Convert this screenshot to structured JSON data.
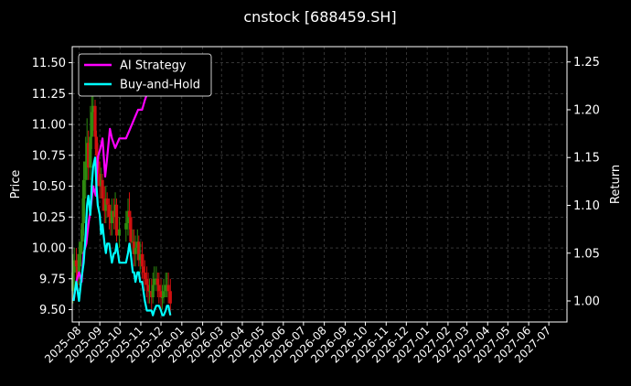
{
  "chart_data": {
    "type": "line",
    "title": "cnstock [688459.SH]",
    "ylabel_left": "Price",
    "ylabel_right": "Return",
    "ylim_left": [
      9.4,
      11.63
    ],
    "ylim_right": [
      0.978,
      1.266
    ],
    "left_ticks": [
      "9.50",
      "9.75",
      "10.00",
      "10.25",
      "10.50",
      "10.75",
      "11.00",
      "11.25",
      "11.50"
    ],
    "right_ticks": [
      "1.00",
      "1.05",
      "1.10",
      "1.15",
      "1.20",
      "1.25"
    ],
    "x_tick_labels": [
      "2025-08",
      "2025-09",
      "2025-10",
      "2025-11",
      "2025-12",
      "2026-01",
      "2026-02",
      "2026-03",
      "2026-04",
      "2026-05",
      "2026-06",
      "2026-07",
      "2026-08",
      "2026-09",
      "2026-10",
      "2026-11",
      "2026-12",
      "2027-01",
      "2027-02",
      "2027-03",
      "2027-04",
      "2027-05",
      "2027-06",
      "2027-07"
    ],
    "xlim": [
      "2025-07-22",
      "2027-07-28"
    ],
    "grid": true,
    "legend_position": "top-left",
    "series": [
      {
        "name": "AI Strategy",
        "axis": "right",
        "color": "#ff00ff",
        "x": [
          "2025-07-24",
          "2025-07-28",
          "2025-08-01",
          "2025-08-05",
          "2025-08-08",
          "2025-08-12",
          "2025-08-15",
          "2025-08-19",
          "2025-08-22",
          "2025-08-26",
          "2025-08-29",
          "2025-09-02",
          "2025-09-05",
          "2025-09-09",
          "2025-09-12",
          "2025-09-16",
          "2025-09-19",
          "2025-09-24",
          "2025-09-30",
          "2025-10-10",
          "2025-10-16",
          "2025-10-22",
          "2025-10-28",
          "2025-11-03",
          "2025-11-07",
          "2025-11-12",
          "2025-11-17",
          "2025-11-21",
          "2025-11-26",
          "2025-12-01",
          "2025-12-05",
          "2025-12-10",
          "2025-12-15"
        ],
        "values": [
          1.0,
          1.02,
          1.03,
          1.02,
          1.05,
          1.06,
          1.08,
          1.1,
          1.12,
          1.11,
          1.15,
          1.16,
          1.17,
          1.13,
          1.15,
          1.18,
          1.17,
          1.16,
          1.17,
          1.17,
          1.18,
          1.19,
          1.2,
          1.2,
          1.21,
          1.22,
          1.235,
          1.24,
          1.245,
          1.245,
          1.25,
          1.253,
          1.257
        ]
      },
      {
        "name": "Buy-and-Hold",
        "axis": "right",
        "color": "#00ffff",
        "x": [
          "2025-07-24",
          "2025-07-26",
          "2025-07-28",
          "2025-07-30",
          "2025-08-01",
          "2025-08-04",
          "2025-08-06",
          "2025-08-08",
          "2025-08-11",
          "2025-08-13",
          "2025-08-15",
          "2025-08-18",
          "2025-08-20",
          "2025-08-22",
          "2025-08-25",
          "2025-08-27",
          "2025-08-29",
          "2025-09-01",
          "2025-09-03",
          "2025-09-05",
          "2025-09-08",
          "2025-09-10",
          "2025-09-12",
          "2025-09-15",
          "2025-09-17",
          "2025-09-19",
          "2025-09-22",
          "2025-09-24",
          "2025-09-26",
          "2025-09-30",
          "2025-10-10",
          "2025-10-13",
          "2025-10-15",
          "2025-10-17",
          "2025-10-20",
          "2025-10-22",
          "2025-10-24",
          "2025-10-27",
          "2025-10-29",
          "2025-10-31",
          "2025-11-03",
          "2025-11-05",
          "2025-11-07",
          "2025-11-10",
          "2025-11-12",
          "2025-11-14",
          "2025-11-17",
          "2025-11-19",
          "2025-11-21",
          "2025-11-24",
          "2025-11-26",
          "2025-11-28",
          "2025-12-01",
          "2025-12-03",
          "2025-12-05",
          "2025-12-08",
          "2025-12-10",
          "2025-12-12",
          "2025-12-15"
        ],
        "values": [
          1.0,
          1.01,
          1.02,
          1.01,
          1.0,
          1.02,
          1.03,
          1.04,
          1.07,
          1.1,
          1.11,
          1.09,
          1.12,
          1.14,
          1.15,
          1.12,
          1.1,
          1.09,
          1.07,
          1.08,
          1.06,
          1.05,
          1.06,
          1.06,
          1.05,
          1.04,
          1.05,
          1.05,
          1.06,
          1.04,
          1.04,
          1.05,
          1.06,
          1.05,
          1.03,
          1.03,
          1.02,
          1.03,
          1.03,
          1.02,
          1.02,
          1.01,
          1.0,
          0.99,
          0.99,
          0.99,
          0.99,
          0.985,
          0.99,
          0.995,
          0.995,
          0.995,
          0.99,
          0.985,
          0.985,
          0.99,
          0.995,
          0.995,
          0.985
        ]
      }
    ],
    "candles": {
      "axis": "left",
      "up_color": "#2e8b10",
      "down_color": "#d01010",
      "x": [
        "2025-07-23",
        "2025-07-25",
        "2025-07-28",
        "2025-07-30",
        "2025-08-01",
        "2025-08-04",
        "2025-08-06",
        "2025-08-08",
        "2025-08-11",
        "2025-08-13",
        "2025-08-15",
        "2025-08-18",
        "2025-08-20",
        "2025-08-22",
        "2025-08-25",
        "2025-08-27",
        "2025-08-29",
        "2025-09-01",
        "2025-09-03",
        "2025-09-05",
        "2025-09-08",
        "2025-09-10",
        "2025-09-12",
        "2025-09-15",
        "2025-09-17",
        "2025-09-19",
        "2025-09-22",
        "2025-09-24",
        "2025-09-26",
        "2025-09-30",
        "2025-10-10",
        "2025-10-13",
        "2025-10-15",
        "2025-10-17",
        "2025-10-20",
        "2025-10-22",
        "2025-10-24",
        "2025-10-27",
        "2025-10-29",
        "2025-10-31",
        "2025-11-03",
        "2025-11-05",
        "2025-11-07",
        "2025-11-10",
        "2025-11-12",
        "2025-11-14",
        "2025-11-17",
        "2025-11-19",
        "2025-11-21",
        "2025-11-24",
        "2025-11-26",
        "2025-11-28",
        "2025-12-01",
        "2025-12-03",
        "2025-12-05",
        "2025-12-08",
        "2025-12-10",
        "2025-12-12",
        "2025-12-15"
      ],
      "open": [
        9.65,
        9.8,
        9.9,
        9.85,
        9.75,
        9.95,
        10.05,
        10.2,
        10.55,
        10.7,
        10.85,
        10.65,
        10.9,
        11.1,
        11.15,
        10.9,
        10.75,
        10.6,
        10.5,
        10.55,
        10.4,
        10.3,
        10.4,
        10.35,
        10.25,
        10.2,
        10.3,
        10.25,
        10.35,
        10.1,
        10.15,
        10.2,
        10.3,
        10.25,
        10.05,
        10.05,
        9.95,
        10.0,
        10.05,
        9.9,
        9.95,
        9.85,
        9.8,
        9.75,
        9.7,
        9.65,
        9.65,
        9.6,
        9.7,
        9.75,
        9.75,
        9.7,
        9.65,
        9.6,
        9.6,
        9.65,
        9.7,
        9.7,
        9.65
      ],
      "close": [
        9.8,
        9.9,
        9.85,
        9.75,
        9.95,
        10.05,
        10.2,
        10.55,
        10.7,
        10.85,
        10.65,
        10.9,
        11.1,
        11.15,
        10.9,
        10.75,
        10.6,
        10.5,
        10.55,
        10.4,
        10.3,
        10.4,
        10.35,
        10.25,
        10.2,
        10.3,
        10.25,
        10.35,
        10.1,
        10.15,
        10.2,
        10.3,
        10.25,
        10.05,
        10.05,
        9.95,
        10.0,
        10.05,
        9.9,
        9.95,
        9.85,
        9.8,
        9.75,
        9.7,
        9.65,
        9.65,
        9.6,
        9.7,
        9.75,
        9.75,
        9.7,
        9.65,
        9.6,
        9.6,
        9.65,
        9.7,
        9.7,
        9.65,
        9.55
      ],
      "high": [
        9.95,
        10.0,
        10.0,
        9.95,
        10.05,
        10.15,
        10.4,
        10.7,
        10.9,
        11.05,
        10.95,
        11.15,
        11.4,
        11.5,
        11.2,
        10.95,
        10.85,
        10.7,
        10.65,
        10.6,
        10.5,
        10.5,
        10.45,
        10.4,
        10.35,
        10.4,
        10.4,
        10.45,
        10.4,
        10.25,
        10.3,
        10.4,
        10.45,
        10.3,
        10.15,
        10.15,
        10.1,
        10.15,
        10.1,
        10.05,
        10.05,
        9.95,
        9.9,
        9.85,
        9.8,
        9.75,
        9.75,
        9.8,
        9.85,
        9.85,
        9.8,
        9.8,
        9.75,
        9.7,
        9.75,
        9.8,
        9.8,
        9.8,
        9.75
      ],
      "low": [
        9.55,
        9.7,
        9.75,
        9.65,
        9.7,
        9.85,
        9.95,
        10.1,
        10.4,
        10.55,
        10.55,
        10.55,
        10.8,
        10.95,
        10.8,
        10.65,
        10.5,
        10.4,
        10.4,
        10.3,
        10.2,
        10.2,
        10.25,
        10.15,
        10.1,
        10.1,
        10.15,
        10.15,
        10.05,
        10.0,
        10.05,
        10.1,
        10.15,
        9.95,
        9.95,
        9.85,
        9.85,
        9.9,
        9.85,
        9.8,
        9.75,
        9.7,
        9.65,
        9.6,
        9.55,
        9.55,
        9.5,
        9.55,
        9.65,
        9.65,
        9.6,
        9.55,
        9.5,
        9.5,
        9.55,
        9.6,
        9.6,
        9.55,
        9.45
      ]
    }
  }
}
